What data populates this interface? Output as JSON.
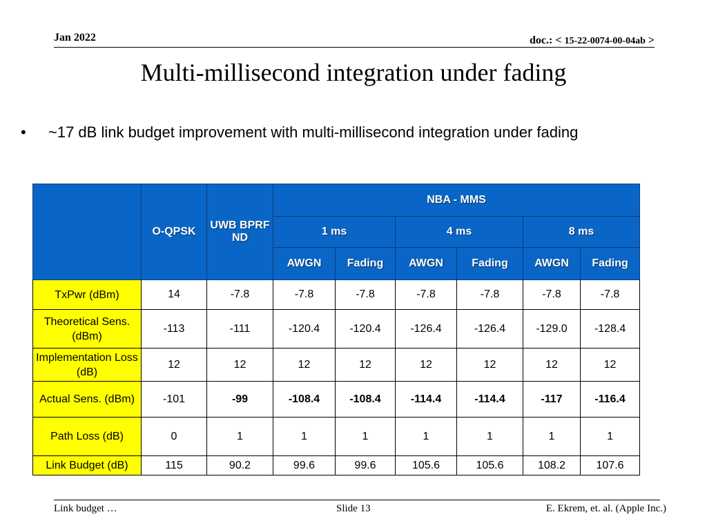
{
  "header": {
    "date": "Jan 2022",
    "doc_prefix": "doc.: <",
    "doc_number": "15-22-0074-00-04ab",
    "doc_suffix": ">"
  },
  "title": "Multi-millisecond integration under fading",
  "bullet": {
    "marker": "•",
    "text": "~17 dB link budget improvement with multi-millisecond integration under fading"
  },
  "table": {
    "headers": {
      "oqpsk": "O-QPSK",
      "uwb": "UWB BPRF ND",
      "nba": "NBA - MMS",
      "groups": [
        "1 ms",
        "4 ms",
        "8 ms"
      ],
      "awgn": "AWGN",
      "fading": "Fading"
    },
    "rows": [
      {
        "label": "TxPwr (dBm)",
        "values": [
          "14",
          "-7.8",
          "-7.8",
          "-7.8",
          "-7.8",
          "-7.8",
          "-7.8",
          "-7.8"
        ]
      },
      {
        "label": "Theoretical Sens. (dBm)",
        "values": [
          "-113",
          "-111",
          "-120.4",
          "-120.4",
          "-126.4",
          "-126.4",
          "-129.0",
          "-128.4"
        ]
      },
      {
        "label": "Implementation Loss (dB)",
        "values": [
          "12",
          "12",
          "12",
          "12",
          "12",
          "12",
          "12",
          "12"
        ]
      },
      {
        "label": "Actual Sens. (dBm)",
        "values": [
          "-101",
          "-99",
          "-108.4",
          "-108.4",
          "-114.4",
          "-114.4",
          "-117",
          "-116.4"
        ]
      },
      {
        "label": "Path Loss (dB)",
        "values": [
          "0",
          "1",
          "1",
          "1",
          "1",
          "1",
          "1",
          "1"
        ]
      },
      {
        "label": "Link Budget (dB)",
        "values": [
          "115",
          "90.2",
          "99.6",
          "99.6",
          "105.6",
          "105.6",
          "108.2",
          "107.6"
        ]
      }
    ]
  },
  "footer": {
    "left": "Link budget …",
    "center": "Slide 13",
    "right": "E. Ekrem, et. al. (Apple Inc.)"
  }
}
